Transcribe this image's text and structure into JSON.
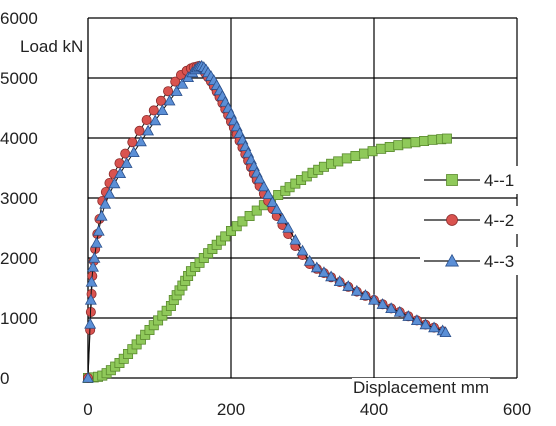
{
  "chart_data": {
    "type": "scatter",
    "xlabel": "Displacement mm",
    "ylabel": "Load kN",
    "xlim": [
      0,
      600
    ],
    "ylim": [
      0,
      6000
    ],
    "xticks": [
      "0",
      "200",
      "400",
      "600"
    ],
    "yticks": [
      "0",
      "1000",
      "2000",
      "3000",
      "4000",
      "5000",
      "6000"
    ],
    "grid": true,
    "legend_position": "right",
    "series": [
      {
        "name": "4--1",
        "marker": "square",
        "color": "#8fc95a",
        "edge": "#5a8a2e",
        "x": [
          0,
          8,
          14,
          20,
          26,
          32,
          38,
          44,
          50,
          56,
          62,
          68,
          74,
          80,
          86,
          92,
          98,
          104,
          110,
          116,
          120,
          124,
          128,
          132,
          136,
          140,
          144,
          150,
          156,
          162,
          168,
          174,
          180,
          186,
          192,
          200,
          208,
          216,
          226,
          236,
          246,
          256,
          266,
          276,
          282,
          290,
          298,
          306,
          314,
          322,
          330,
          340,
          350,
          362,
          374,
          386,
          398,
          410,
          422,
          434,
          446,
          458,
          470,
          482,
          494,
          502
        ],
        "y": [
          0,
          10,
          20,
          40,
          80,
          130,
          190,
          250,
          320,
          400,
          480,
          560,
          640,
          720,
          800,
          880,
          960,
          1040,
          1120,
          1200,
          1300,
          1380,
          1460,
          1540,
          1620,
          1700,
          1780,
          1850,
          1920,
          2000,
          2080,
          2150,
          2220,
          2290,
          2360,
          2450,
          2530,
          2610,
          2700,
          2790,
          2880,
          2960,
          3050,
          3120,
          3180,
          3240,
          3300,
          3360,
          3420,
          3470,
          3520,
          3570,
          3610,
          3660,
          3700,
          3740,
          3780,
          3820,
          3850,
          3880,
          3910,
          3930,
          3950,
          3970,
          3980,
          3990
        ]
      },
      {
        "name": "4--2",
        "marker": "circle",
        "color": "#d9534f",
        "edge": "#8b2a2a",
        "x": [
          0,
          3,
          4,
          5,
          6,
          8,
          10,
          13,
          16,
          20,
          25,
          30,
          36,
          44,
          52,
          62,
          72,
          82,
          92,
          102,
          112,
          122,
          130,
          138,
          144,
          148,
          152,
          155,
          158,
          161,
          164,
          168,
          172,
          176,
          180,
          184,
          188,
          192,
          196,
          200,
          204,
          208,
          212,
          216,
          220,
          224,
          228,
          232,
          236,
          240,
          246,
          252,
          258,
          264,
          272,
          280,
          290,
          300,
          310,
          320,
          330,
          340,
          352,
          364,
          376,
          388,
          400,
          412,
          424,
          436,
          448,
          460,
          472,
          484,
          496
        ],
        "y": [
          0,
          800,
          1100,
          1400,
          1700,
          1950,
          2150,
          2400,
          2650,
          2950,
          3100,
          3250,
          3400,
          3580,
          3740,
          3930,
          4120,
          4300,
          4460,
          4620,
          4780,
          4940,
          5050,
          5120,
          5160,
          5180,
          5190,
          5200,
          5170,
          5130,
          5080,
          5010,
          4940,
          4860,
          4770,
          4680,
          4580,
          4480,
          4380,
          4270,
          4170,
          4060,
          3950,
          3840,
          3730,
          3620,
          3510,
          3400,
          3300,
          3200,
          3070,
          2950,
          2820,
          2700,
          2550,
          2400,
          2200,
          2050,
          1900,
          1820,
          1750,
          1680,
          1600,
          1520,
          1440,
          1370,
          1300,
          1230,
          1160,
          1100,
          1030,
          960,
          890,
          840,
          780
        ]
      },
      {
        "name": "4--3",
        "marker": "triangle",
        "color": "#5b8fd6",
        "edge": "#2a4f8b",
        "x": [
          0,
          3,
          4,
          5,
          7,
          9,
          12,
          15,
          19,
          24,
          30,
          37,
          45,
          54,
          64,
          74,
          84,
          94,
          104,
          114,
          124,
          132,
          140,
          146,
          150,
          153,
          156,
          159,
          162,
          165,
          168,
          172,
          176,
          180,
          184,
          188,
          192,
          196,
          200,
          204,
          208,
          212,
          216,
          220,
          224,
          228,
          232,
          236,
          240,
          246,
          252,
          258,
          264,
          272,
          280,
          290,
          300,
          310,
          320,
          330,
          340,
          352,
          364,
          376,
          388,
          400,
          412,
          424,
          436,
          448,
          460,
          472,
          484,
          496,
          500
        ],
        "y": [
          0,
          900,
          1300,
          1600,
          1850,
          2000,
          2250,
          2450,
          2700,
          2900,
          3070,
          3240,
          3410,
          3580,
          3760,
          3940,
          4120,
          4290,
          4460,
          4620,
          4780,
          4900,
          5010,
          5090,
          5140,
          5170,
          5190,
          5200,
          5180,
          5140,
          5090,
          5030,
          4960,
          4880,
          4790,
          4700,
          4600,
          4500,
          4400,
          4290,
          4190,
          4080,
          3970,
          3860,
          3750,
          3640,
          3530,
          3420,
          3320,
          3190,
          3060,
          2930,
          2810,
          2650,
          2500,
          2300,
          2120,
          1950,
          1840,
          1760,
          1690,
          1610,
          1530,
          1450,
          1380,
          1300,
          1230,
          1160,
          1100,
          1030,
          960,
          890,
          840,
          790,
          760
        ]
      }
    ]
  }
}
